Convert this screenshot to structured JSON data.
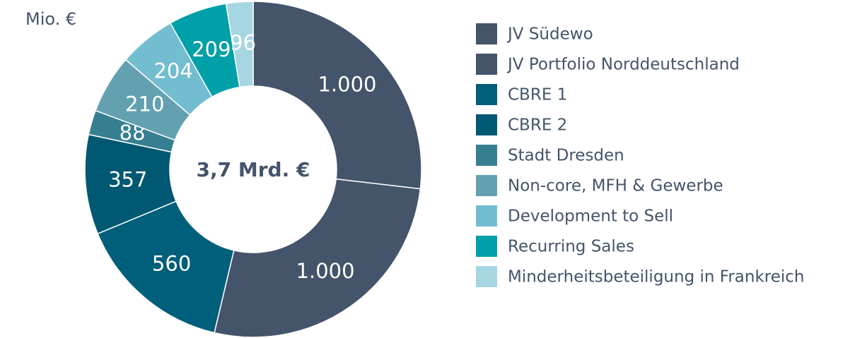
{
  "chart_data": {
    "type": "pie",
    "unit_label": "Mio. €",
    "center_label": "3,7 Mrd. €",
    "categories": [
      "JV Südewo",
      "JV Portfolio Norddeutschland",
      "CBRE 1",
      "CBRE 2",
      "Stadt Dresden",
      "Non-core, MFH & Gewerbe",
      "Development to Sell",
      "Recurring Sales",
      "Minderheitsbeteiligung in Frankreich"
    ],
    "values": [
      1000,
      1000,
      560,
      357,
      88,
      210,
      204,
      209,
      96
    ],
    "value_labels": [
      "1.000",
      "1.000",
      "560",
      "357",
      "88",
      "210",
      "204",
      "209",
      "96"
    ],
    "colors": [
      "#44546a",
      "#44546a",
      "#005f7a",
      "#005872",
      "#367f90",
      "#63a1b1",
      "#73bdd1",
      "#00a0a8",
      "#a6d6e1"
    ],
    "donut": true
  }
}
